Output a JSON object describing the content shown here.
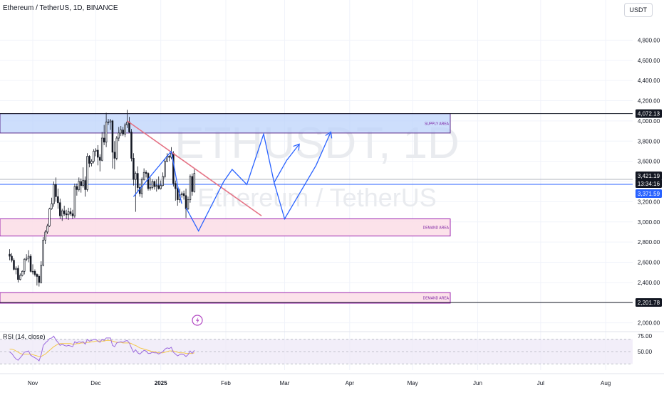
{
  "header": {
    "symbol_title": "Ethereum / TetherUS, 1D, BINANCE",
    "quote_currency_button": "USDT"
  },
  "watermark": {
    "ticker": "ETHUSDT, 1D",
    "name": "Ethereum / TetherUS"
  },
  "colors": {
    "up": "#131722",
    "down": "#131722",
    "supply_fill": "#bcd3fb",
    "supply_border": "#5b2b8b",
    "demand_fill": "#fbdde6",
    "demand_border": "#9c27b0",
    "trendline": "#e57385",
    "projection": "#2962ff",
    "price_line": "#2962ff",
    "rsi_line": "#9c6ade",
    "rsi_ma": "#f5c84c",
    "rsi_band": "#ede7f6"
  },
  "chart_data": {
    "type": "candlestick",
    "symbol": "ETHUSDT",
    "timeframe": "1D",
    "exchange": "BINANCE",
    "y_axis": {
      "ticks": [
        "2,000.00",
        "2,200.00",
        "2,400.00",
        "2,600.00",
        "2,800.00",
        "3,000.00",
        "3,200.00",
        "3,400.00",
        "3,600.00",
        "3,800.00",
        "4,000.00",
        "4,200.00",
        "4,400.00",
        "4,600.00",
        "4,800.00"
      ],
      "range": [
        1920,
        5000
      ]
    },
    "x_axis": {
      "ticks": [
        "Nov",
        "Dec",
        "2025",
        "Feb",
        "Mar",
        "Apr",
        "May",
        "Jun",
        "Jul",
        "Aug"
      ],
      "tick_dates": [
        "2024-11-01",
        "2024-12-01",
        "2025-01-01",
        "2025-02-01",
        "2025-03-01",
        "2025-04-01",
        "2025-05-01",
        "2025-06-01",
        "2025-07-01",
        "2025-08-01"
      ]
    },
    "price_labels": [
      {
        "text": "4,072.13",
        "value": 4072.13,
        "style": "dark"
      },
      {
        "text": "3,421.19",
        "value": 3421.19,
        "style": "dark"
      },
      {
        "text": "13:34:16",
        "value": 3380,
        "style": "dark"
      },
      {
        "text": "3,371.59",
        "value": 3371.59,
        "style": "blue"
      },
      {
        "text": "2,201.78",
        "value": 2201.78,
        "style": "dark"
      }
    ],
    "zones": [
      {
        "label": "SUPPLY AREA",
        "from": 3880,
        "to": 4072,
        "kind": "supply"
      },
      {
        "label": "DEMAND AREA",
        "from": 2860,
        "to": 3030,
        "kind": "demand"
      },
      {
        "label": "DEMAND AREA",
        "from": 2195,
        "to": 2300,
        "kind": "demand"
      }
    ],
    "horizontal_levels": [
      4072.13,
      3421.19,
      3371.59,
      2201.78
    ],
    "trendline": {
      "from": {
        "date": "2024-12-16",
        "price": 4000
      },
      "to": {
        "date": "2025-02-18",
        "price": 3060
      }
    },
    "projection_path": [
      {
        "date": "2025-01-13",
        "price": 3140
      },
      {
        "date": "2025-01-19",
        "price": 2910
      },
      {
        "date": "2025-01-31",
        "price": 3400
      },
      {
        "date": "2025-02-04",
        "price": 3520
      },
      {
        "date": "2025-02-11",
        "price": 3370
      },
      {
        "date": "2025-02-19",
        "price": 3870
      },
      {
        "date": "2025-02-24",
        "price": 3390
      },
      {
        "date": "2025-03-02",
        "price": 3610
      },
      {
        "date": "2025-03-08",
        "price": 3770
      }
    ],
    "projection_path_2": [
      {
        "date": "2025-02-24",
        "price": 3390
      },
      {
        "date": "2025-03-01",
        "price": 3030
      },
      {
        "date": "2025-03-16",
        "price": 3560
      },
      {
        "date": "2025-03-23",
        "price": 3890
      }
    ],
    "zigzag": [
      {
        "date": "2024-12-19",
        "price": 3250
      },
      {
        "date": "2025-01-02",
        "price": 3600
      },
      {
        "date": "2025-01-06",
        "price": 3700
      }
    ],
    "zigzag_2": [
      {
        "date": "2025-01-06",
        "price": 3700
      },
      {
        "date": "2025-01-09",
        "price": 3360
      },
      {
        "date": "2025-01-11",
        "price": 3180
      }
    ],
    "candles": [
      {
        "date": "2024-10-21",
        "o": 2680,
        "h": 2730,
        "l": 2620,
        "c": 2660
      },
      {
        "date": "2024-10-22",
        "o": 2660,
        "h": 2690,
        "l": 2600,
        "c": 2620
      },
      {
        "date": "2024-10-23",
        "o": 2620,
        "h": 2640,
        "l": 2520,
        "c": 2530
      },
      {
        "date": "2024-10-24",
        "o": 2530,
        "h": 2560,
        "l": 2480,
        "c": 2540
      },
      {
        "date": "2024-10-25",
        "o": 2540,
        "h": 2570,
        "l": 2400,
        "c": 2430
      },
      {
        "date": "2024-10-26",
        "o": 2430,
        "h": 2490,
        "l": 2420,
        "c": 2470
      },
      {
        "date": "2024-10-27",
        "o": 2470,
        "h": 2520,
        "l": 2460,
        "c": 2510
      },
      {
        "date": "2024-10-28",
        "o": 2510,
        "h": 2640,
        "l": 2480,
        "c": 2630
      },
      {
        "date": "2024-10-29",
        "o": 2630,
        "h": 2680,
        "l": 2610,
        "c": 2640
      },
      {
        "date": "2024-10-30",
        "o": 2640,
        "h": 2720,
        "l": 2600,
        "c": 2660
      },
      {
        "date": "2024-10-31",
        "o": 2660,
        "h": 2680,
        "l": 2500,
        "c": 2510
      },
      {
        "date": "2024-11-01",
        "o": 2510,
        "h": 2580,
        "l": 2480,
        "c": 2510
      },
      {
        "date": "2024-11-02",
        "o": 2510,
        "h": 2530,
        "l": 2460,
        "c": 2480
      },
      {
        "date": "2024-11-03",
        "o": 2480,
        "h": 2490,
        "l": 2370,
        "c": 2460
      },
      {
        "date": "2024-11-04",
        "o": 2460,
        "h": 2480,
        "l": 2360,
        "c": 2400
      },
      {
        "date": "2024-11-05",
        "o": 2400,
        "h": 2610,
        "l": 2390,
        "c": 2570
      },
      {
        "date": "2024-11-06",
        "o": 2570,
        "h": 2850,
        "l": 2560,
        "c": 2820
      },
      {
        "date": "2024-11-07",
        "o": 2820,
        "h": 2920,
        "l": 2780,
        "c": 2900
      },
      {
        "date": "2024-11-08",
        "o": 2900,
        "h": 2980,
        "l": 2880,
        "c": 2960
      },
      {
        "date": "2024-11-09",
        "o": 2960,
        "h": 3140,
        "l": 2950,
        "c": 3130
      },
      {
        "date": "2024-11-10",
        "o": 3130,
        "h": 3240,
        "l": 3120,
        "c": 3180
      },
      {
        "date": "2024-11-11",
        "o": 3180,
        "h": 3400,
        "l": 3150,
        "c": 3370
      },
      {
        "date": "2024-11-12",
        "o": 3370,
        "h": 3440,
        "l": 3200,
        "c": 3250
      },
      {
        "date": "2024-11-13",
        "o": 3250,
        "h": 3330,
        "l": 3130,
        "c": 3190
      },
      {
        "date": "2024-11-14",
        "o": 3190,
        "h": 3230,
        "l": 3030,
        "c": 3060
      },
      {
        "date": "2024-11-15",
        "o": 3060,
        "h": 3130,
        "l": 3010,
        "c": 3110
      },
      {
        "date": "2024-11-16",
        "o": 3110,
        "h": 3160,
        "l": 3060,
        "c": 3080
      },
      {
        "date": "2024-11-17",
        "o": 3080,
        "h": 3120,
        "l": 3030,
        "c": 3070
      },
      {
        "date": "2024-11-18",
        "o": 3070,
        "h": 3140,
        "l": 3020,
        "c": 3100
      },
      {
        "date": "2024-11-19",
        "o": 3100,
        "h": 3140,
        "l": 3060,
        "c": 3080
      },
      {
        "date": "2024-11-20",
        "o": 3080,
        "h": 3120,
        "l": 3030,
        "c": 3060
      },
      {
        "date": "2024-11-21",
        "o": 3060,
        "h": 3380,
        "l": 3040,
        "c": 3350
      },
      {
        "date": "2024-11-22",
        "o": 3350,
        "h": 3380,
        "l": 3260,
        "c": 3320
      },
      {
        "date": "2024-11-23",
        "o": 3320,
        "h": 3440,
        "l": 3300,
        "c": 3400
      },
      {
        "date": "2024-11-24",
        "o": 3400,
        "h": 3430,
        "l": 3290,
        "c": 3360
      },
      {
        "date": "2024-11-25",
        "o": 3360,
        "h": 3540,
        "l": 3340,
        "c": 3410
      },
      {
        "date": "2024-11-26",
        "o": 3410,
        "h": 3450,
        "l": 3250,
        "c": 3320
      },
      {
        "date": "2024-11-27",
        "o": 3320,
        "h": 3680,
        "l": 3300,
        "c": 3650
      },
      {
        "date": "2024-11-28",
        "o": 3650,
        "h": 3660,
        "l": 3540,
        "c": 3580
      },
      {
        "date": "2024-11-29",
        "o": 3580,
        "h": 3620,
        "l": 3550,
        "c": 3600
      },
      {
        "date": "2024-11-30",
        "o": 3600,
        "h": 3720,
        "l": 3580,
        "c": 3700
      },
      {
        "date": "2024-12-01",
        "o": 3700,
        "h": 3730,
        "l": 3650,
        "c": 3710
      },
      {
        "date": "2024-12-02",
        "o": 3710,
        "h": 3760,
        "l": 3560,
        "c": 3640
      },
      {
        "date": "2024-12-03",
        "o": 3640,
        "h": 3670,
        "l": 3500,
        "c": 3610
      },
      {
        "date": "2024-12-04",
        "o": 3610,
        "h": 3890,
        "l": 3600,
        "c": 3830
      },
      {
        "date": "2024-12-05",
        "o": 3830,
        "h": 3960,
        "l": 3760,
        "c": 3790
      },
      {
        "date": "2024-12-06",
        "o": 3790,
        "h": 4080,
        "l": 3740,
        "c": 3990
      },
      {
        "date": "2024-12-07",
        "o": 3990,
        "h": 4020,
        "l": 3960,
        "c": 3990
      },
      {
        "date": "2024-12-08",
        "o": 3990,
        "h": 4020,
        "l": 3910,
        "c": 4000
      },
      {
        "date": "2024-12-09",
        "o": 4000,
        "h": 4010,
        "l": 3530,
        "c": 3690
      },
      {
        "date": "2024-12-10",
        "o": 3690,
        "h": 3800,
        "l": 3520,
        "c": 3630
      },
      {
        "date": "2024-12-11",
        "o": 3630,
        "h": 3850,
        "l": 3610,
        "c": 3830
      },
      {
        "date": "2024-12-12",
        "o": 3830,
        "h": 3940,
        "l": 3800,
        "c": 3880
      },
      {
        "date": "2024-12-13",
        "o": 3880,
        "h": 3950,
        "l": 3850,
        "c": 3910
      },
      {
        "date": "2024-12-14",
        "o": 3910,
        "h": 3940,
        "l": 3850,
        "c": 3870
      },
      {
        "date": "2024-12-15",
        "o": 3870,
        "h": 3980,
        "l": 3840,
        "c": 3960
      },
      {
        "date": "2024-12-16",
        "o": 3960,
        "h": 4110,
        "l": 3930,
        "c": 3990
      },
      {
        "date": "2024-12-17",
        "o": 3990,
        "h": 4040,
        "l": 3880,
        "c": 3890
      },
      {
        "date": "2024-12-18",
        "o": 3890,
        "h": 3920,
        "l": 3600,
        "c": 3630
      },
      {
        "date": "2024-12-19",
        "o": 3630,
        "h": 3680,
        "l": 3360,
        "c": 3420
      },
      {
        "date": "2024-12-20",
        "o": 3420,
        "h": 3500,
        "l": 3100,
        "c": 3480
      },
      {
        "date": "2024-12-21",
        "o": 3480,
        "h": 3550,
        "l": 3300,
        "c": 3340
      },
      {
        "date": "2024-12-22",
        "o": 3340,
        "h": 3380,
        "l": 3250,
        "c": 3280
      },
      {
        "date": "2024-12-23",
        "o": 3280,
        "h": 3440,
        "l": 3240,
        "c": 3420
      },
      {
        "date": "2024-12-24",
        "o": 3420,
        "h": 3530,
        "l": 3410,
        "c": 3490
      },
      {
        "date": "2024-12-25",
        "o": 3490,
        "h": 3510,
        "l": 3440,
        "c": 3480
      },
      {
        "date": "2024-12-26",
        "o": 3480,
        "h": 3490,
        "l": 3310,
        "c": 3330
      },
      {
        "date": "2024-12-27",
        "o": 3330,
        "h": 3440,
        "l": 3310,
        "c": 3340
      },
      {
        "date": "2024-12-28",
        "o": 3340,
        "h": 3420,
        "l": 3320,
        "c": 3400
      },
      {
        "date": "2024-12-29",
        "o": 3400,
        "h": 3410,
        "l": 3320,
        "c": 3350
      },
      {
        "date": "2024-12-30",
        "o": 3350,
        "h": 3420,
        "l": 3300,
        "c": 3360
      },
      {
        "date": "2024-12-31",
        "o": 3360,
        "h": 3450,
        "l": 3320,
        "c": 3330
      },
      {
        "date": "2025-01-01",
        "o": 3330,
        "h": 3410,
        "l": 3320,
        "c": 3360
      },
      {
        "date": "2025-01-02",
        "o": 3360,
        "h": 3490,
        "l": 3350,
        "c": 3450
      },
      {
        "date": "2025-01-03",
        "o": 3450,
        "h": 3620,
        "l": 3430,
        "c": 3600
      },
      {
        "date": "2025-01-04",
        "o": 3600,
        "h": 3680,
        "l": 3590,
        "c": 3650
      },
      {
        "date": "2025-01-05",
        "o": 3650,
        "h": 3660,
        "l": 3600,
        "c": 3640
      },
      {
        "date": "2025-01-06",
        "o": 3640,
        "h": 3740,
        "l": 3620,
        "c": 3680
      },
      {
        "date": "2025-01-07",
        "o": 3680,
        "h": 3700,
        "l": 3350,
        "c": 3380
      },
      {
        "date": "2025-01-08",
        "o": 3380,
        "h": 3410,
        "l": 3210,
        "c": 3330
      },
      {
        "date": "2025-01-09",
        "o": 3330,
        "h": 3350,
        "l": 3160,
        "c": 3220
      },
      {
        "date": "2025-01-10",
        "o": 3220,
        "h": 3330,
        "l": 3190,
        "c": 3270
      },
      {
        "date": "2025-01-11",
        "o": 3270,
        "h": 3300,
        "l": 3240,
        "c": 3280
      },
      {
        "date": "2025-01-12",
        "o": 3280,
        "h": 3310,
        "l": 3220,
        "c": 3260
      },
      {
        "date": "2025-01-13",
        "o": 3260,
        "h": 3330,
        "l": 3040,
        "c": 3130
      },
      {
        "date": "2025-01-14",
        "o": 3130,
        "h": 3250,
        "l": 3120,
        "c": 3220
      },
      {
        "date": "2025-01-15",
        "o": 3220,
        "h": 3470,
        "l": 3190,
        "c": 3450
      },
      {
        "date": "2025-01-16",
        "o": 3450,
        "h": 3480,
        "l": 3260,
        "c": 3300
      },
      {
        "date": "2025-01-17",
        "o": 3300,
        "h": 3520,
        "l": 3290,
        "c": 3480
      }
    ],
    "rsi": {
      "label": "RSI (14, close)",
      "ticks": [
        "75.00",
        "50.00"
      ],
      "band": [
        30,
        70
      ],
      "values": [
        49,
        47,
        42,
        38,
        36,
        40,
        44,
        49,
        50,
        51,
        44,
        42,
        40,
        38,
        35,
        45,
        60,
        64,
        67,
        71,
        72,
        75,
        69,
        65,
        60,
        62,
        60,
        59,
        60,
        59,
        58,
        66,
        64,
        66,
        65,
        66,
        62,
        70,
        67,
        68,
        70,
        70,
        67,
        65,
        70,
        68,
        72,
        72,
        72,
        60,
        58,
        64,
        65,
        66,
        65,
        67,
        68,
        64,
        56,
        49,
        53,
        48,
        46,
        49,
        52,
        51,
        47,
        47,
        49,
        48,
        48,
        46,
        48,
        50,
        54,
        56,
        55,
        57,
        49,
        46,
        43,
        45,
        46,
        45,
        42,
        45,
        51,
        47,
        52
      ],
      "ma": [
        54,
        54,
        53,
        51,
        49,
        47,
        46,
        46,
        46,
        46,
        46,
        45,
        44,
        43,
        42,
        42,
        44,
        46,
        49,
        52,
        55,
        58,
        60,
        62,
        63,
        63,
        63,
        63,
        63,
        63,
        62,
        62,
        63,
        63,
        64,
        64,
        64,
        65,
        65,
        66,
        66,
        67,
        67,
        67,
        67,
        67,
        68,
        68,
        68,
        67,
        66,
        65,
        65,
        65,
        64,
        64,
        64,
        64,
        63,
        61,
        60,
        58,
        56,
        55,
        54,
        53,
        52,
        51,
        50,
        50,
        49,
        48,
        48,
        48,
        49,
        50,
        51,
        51,
        51,
        50,
        49,
        48,
        48,
        48,
        47,
        47,
        47,
        47,
        48
      ]
    }
  }
}
